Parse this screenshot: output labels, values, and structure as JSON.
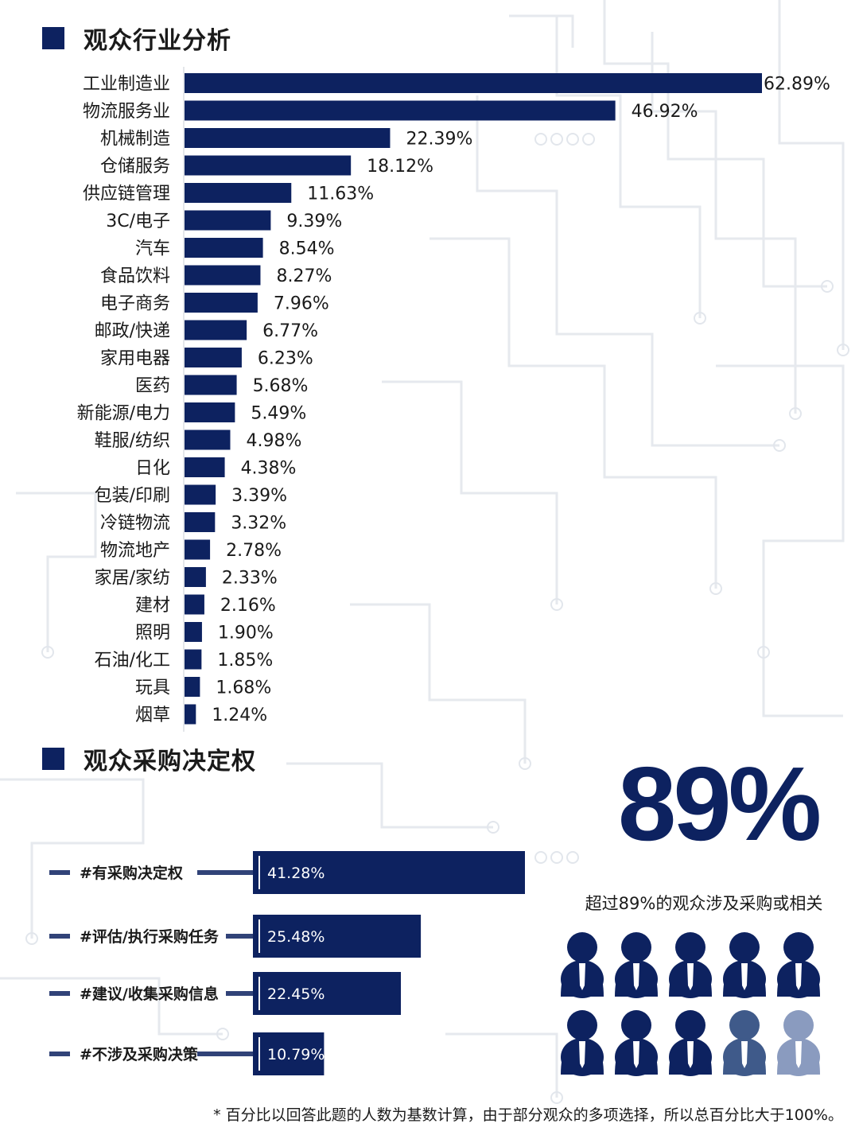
{
  "sections": {
    "industry_title": "观众行业分析",
    "purchase_title": "观众采购决定权"
  },
  "colors": {
    "bar": "#0d2260",
    "bar_faded_1": "#3f5a8a",
    "bar_faded_2": "#8a9bbf",
    "circuit": "#e4e7ec"
  },
  "chart_data": [
    {
      "type": "bar",
      "orientation": "horizontal",
      "title": "观众行业分析",
      "unit": "%",
      "categories": [
        "工业制造业",
        "物流服务业",
        "机械制造",
        "仓储服务",
        "供应链管理",
        "3C/电子",
        "汽车",
        "食品饮料",
        "电子商务",
        "邮政/快递",
        "家用电器",
        "医药",
        "新能源/电力",
        "鞋服/纺织",
        "日化",
        "包装/印刷",
        "冷链物流",
        "物流地产",
        "家居/家纺",
        "建材",
        "照明",
        "石油/化工",
        "玩具",
        "烟草"
      ],
      "values": [
        62.89,
        46.92,
        22.39,
        18.12,
        11.63,
        9.39,
        8.54,
        8.27,
        7.96,
        6.77,
        6.23,
        5.68,
        5.49,
        4.98,
        4.38,
        3.39,
        3.32,
        2.78,
        2.33,
        2.16,
        1.9,
        1.85,
        1.68,
        1.24
      ],
      "value_labels": [
        "62.89%",
        "46.92%",
        "22.39%",
        "18.12%",
        "11.63%",
        "9.39%",
        "8.54%",
        "8.27%",
        "7.96%",
        "6.77%",
        "6.23%",
        "5.68%",
        "5.49%",
        "4.98%",
        "4.38%",
        "3.39%",
        "3.32%",
        "2.78%",
        "2.33%",
        "2.16%",
        "1.90%",
        "1.85%",
        "1.68%",
        "1.24%"
      ],
      "xlim": [
        0,
        62.89
      ]
    },
    {
      "type": "bar",
      "orientation": "horizontal",
      "title": "观众采购决定权",
      "unit": "%",
      "categories": [
        "#有采购决定权",
        "#评估/执行采购任务",
        "#建议/收集采购信息",
        "#不涉及采购决策"
      ],
      "values": [
        41.28,
        25.48,
        22.45,
        10.79
      ],
      "value_labels": [
        "41.28%",
        "25.48%",
        "22.45%",
        "10.79%"
      ],
      "xlim": [
        0,
        41.28
      ]
    }
  ],
  "summary": {
    "big_percent": "89%",
    "caption": "超过89%的观众涉及采购或相关",
    "person_icons": 10,
    "full_icons": 8,
    "faded_icons": 2
  },
  "footnote": "* 百分比以回答此题的人数为基数计算，由于部分观众的多项选择，所以总百分比大于100%。"
}
